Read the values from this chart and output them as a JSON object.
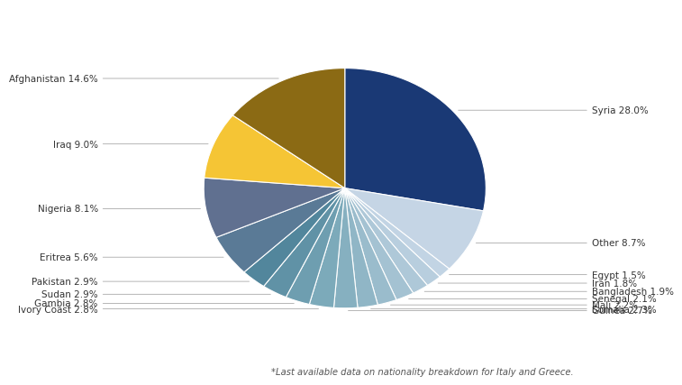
{
  "labels": [
    "Syria",
    "Other",
    "Egypt",
    "Iran",
    "Bangladesh",
    "Senegal",
    "Mali",
    "Somalia",
    "Guinea",
    "Ivory Coast",
    "Gambia",
    "Sudan",
    "Pakistan",
    "Eritrea",
    "Nigeria",
    "Iraq",
    "Afghanistan"
  ],
  "values": [
    28.0,
    8.7,
    1.5,
    1.8,
    1.9,
    2.1,
    2.2,
    2.3,
    2.7,
    2.8,
    2.8,
    2.9,
    2.9,
    5.6,
    8.1,
    9.0,
    14.6
  ],
  "colors": [
    "#1a3975",
    "#c5d5e5",
    "#c2d4e4",
    "#b8cede",
    "#aec8d8",
    "#a4c2d2",
    "#9abccc",
    "#90b6c6",
    "#86b0c0",
    "#7caaba",
    "#6e9eb0",
    "#6092a6",
    "#52869c",
    "#5a7a96",
    "#607090",
    "#f5c535",
    "#8b6a14"
  ],
  "label_texts": {
    "Syria": "Syria 28.0%",
    "Other": "Other 8.7%",
    "Egypt": "Egypt 1.5%",
    "Iran": "Iran 1.8%",
    "Bangladesh": "Bangladesh 1.9%",
    "Senegal": "Senegal 2.1%",
    "Mali": "Mali 2.2%",
    "Somalia": "Somalia 2.3%",
    "Guinea": "Guinea 2.7%",
    "Ivory Coast": "Ivory Coast 2.8%",
    "Gambia": "Gambia 2.8%",
    "Sudan": "Sudan 2.9%",
    "Pakistan": "Pakistan 2.9%",
    "Eritrea": "Eritrea 5.6%",
    "Nigeria": "Nigeria 8.1%",
    "Iraq": "Iraq 9.0%",
    "Afghanistan": "Afghanistan 14.6%"
  },
  "footnote": "*Last available data on nationality breakdown for Italy and Greece.",
  "background_color": "#ffffff",
  "fontsize": 7.5
}
